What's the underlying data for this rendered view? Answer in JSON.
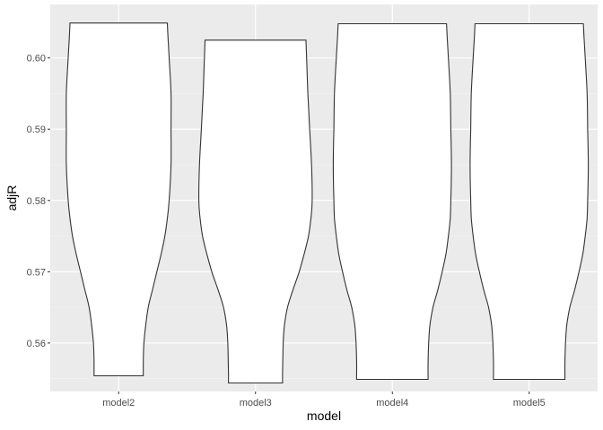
{
  "chart_data": {
    "type": "violin",
    "xlabel": "model",
    "ylabel": "adjR",
    "categories": [
      "model2",
      "model3",
      "model4",
      "model5"
    ],
    "y_ticks": [
      0.56,
      0.57,
      0.58,
      0.59,
      0.6
    ],
    "y_tick_labels": [
      "0.56",
      "0.57",
      "0.58",
      "0.59",
      "0.60"
    ],
    "ylim": [
      0.5532,
      0.6075
    ],
    "grid": true,
    "legend": "none",
    "colors": {
      "panel_background": "#ebebeb",
      "grid_major": "#ffffff",
      "grid_minor": "#f5f5f5",
      "violin_fill": "#ffffff",
      "violin_stroke": "#333333"
    },
    "series": [
      {
        "category": "model2",
        "min": 0.5554,
        "max": 0.6049,
        "profile": [
          {
            "y": 0.5554,
            "w": 0.4
          },
          {
            "y": 0.5575,
            "w": 0.4
          },
          {
            "y": 0.56,
            "w": 0.41
          },
          {
            "y": 0.5625,
            "w": 0.44
          },
          {
            "y": 0.565,
            "w": 0.48
          },
          {
            "y": 0.5675,
            "w": 0.55
          },
          {
            "y": 0.57,
            "w": 0.62
          },
          {
            "y": 0.5725,
            "w": 0.69
          },
          {
            "y": 0.575,
            "w": 0.75
          },
          {
            "y": 0.5775,
            "w": 0.79
          },
          {
            "y": 0.58,
            "w": 0.82
          },
          {
            "y": 0.585,
            "w": 0.85
          },
          {
            "y": 0.59,
            "w": 0.85
          },
          {
            "y": 0.595,
            "w": 0.85
          },
          {
            "y": 0.6,
            "w": 0.82
          },
          {
            "y": 0.603,
            "w": 0.8
          },
          {
            "y": 0.6049,
            "w": 0.79
          }
        ]
      },
      {
        "category": "model3",
        "min": 0.5544,
        "max": 0.6025,
        "profile": [
          {
            "y": 0.5544,
            "w": 0.44
          },
          {
            "y": 0.556,
            "w": 0.44
          },
          {
            "y": 0.56,
            "w": 0.45
          },
          {
            "y": 0.5625,
            "w": 0.47
          },
          {
            "y": 0.565,
            "w": 0.52
          },
          {
            "y": 0.5675,
            "w": 0.61
          },
          {
            "y": 0.57,
            "w": 0.71
          },
          {
            "y": 0.5725,
            "w": 0.79
          },
          {
            "y": 0.575,
            "w": 0.86
          },
          {
            "y": 0.5775,
            "w": 0.9
          },
          {
            "y": 0.58,
            "w": 0.92
          },
          {
            "y": 0.585,
            "w": 0.91
          },
          {
            "y": 0.59,
            "w": 0.88
          },
          {
            "y": 0.595,
            "w": 0.85
          },
          {
            "y": 0.6,
            "w": 0.83
          },
          {
            "y": 0.6025,
            "w": 0.82
          }
        ]
      },
      {
        "category": "model4",
        "min": 0.5549,
        "max": 0.6048,
        "profile": [
          {
            "y": 0.5549,
            "w": 0.58
          },
          {
            "y": 0.5575,
            "w": 0.58
          },
          {
            "y": 0.56,
            "w": 0.59
          },
          {
            "y": 0.5625,
            "w": 0.61
          },
          {
            "y": 0.565,
            "w": 0.66
          },
          {
            "y": 0.5675,
            "w": 0.74
          },
          {
            "y": 0.57,
            "w": 0.81
          },
          {
            "y": 0.5725,
            "w": 0.87
          },
          {
            "y": 0.575,
            "w": 0.91
          },
          {
            "y": 0.5775,
            "w": 0.94
          },
          {
            "y": 0.58,
            "w": 0.95
          },
          {
            "y": 0.585,
            "w": 0.96
          },
          {
            "y": 0.59,
            "w": 0.95
          },
          {
            "y": 0.595,
            "w": 0.94
          },
          {
            "y": 0.6,
            "w": 0.91
          },
          {
            "y": 0.603,
            "w": 0.89
          },
          {
            "y": 0.6048,
            "w": 0.88
          }
        ]
      },
      {
        "category": "model5",
        "min": 0.5549,
        "max": 0.6048,
        "profile": [
          {
            "y": 0.5549,
            "w": 0.58
          },
          {
            "y": 0.5575,
            "w": 0.58
          },
          {
            "y": 0.56,
            "w": 0.59
          },
          {
            "y": 0.5625,
            "w": 0.61
          },
          {
            "y": 0.565,
            "w": 0.66
          },
          {
            "y": 0.5675,
            "w": 0.74
          },
          {
            "y": 0.57,
            "w": 0.81
          },
          {
            "y": 0.5725,
            "w": 0.87
          },
          {
            "y": 0.575,
            "w": 0.91
          },
          {
            "y": 0.5775,
            "w": 0.94
          },
          {
            "y": 0.58,
            "w": 0.95
          },
          {
            "y": 0.585,
            "w": 0.96
          },
          {
            "y": 0.59,
            "w": 0.95
          },
          {
            "y": 0.595,
            "w": 0.94
          },
          {
            "y": 0.6,
            "w": 0.91
          },
          {
            "y": 0.603,
            "w": 0.89
          },
          {
            "y": 0.6048,
            "w": 0.88
          }
        ]
      }
    ]
  }
}
